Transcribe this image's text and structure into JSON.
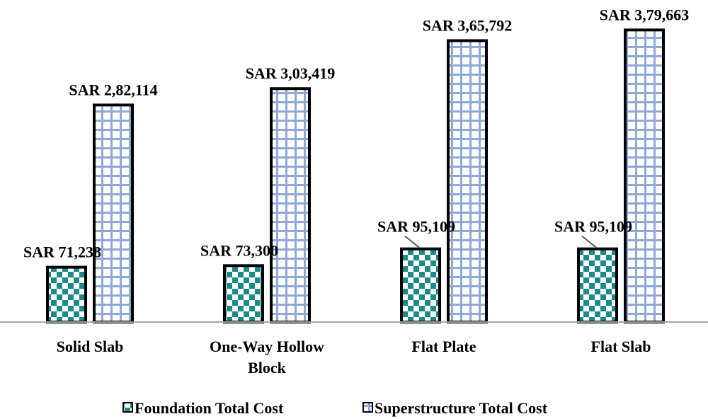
{
  "chart_data": {
    "type": "bar",
    "title": "",
    "xlabel": "",
    "ylabel": "",
    "categories": [
      [
        "Solid Slab"
      ],
      [
        "One-Way Hollow",
        "Block"
      ],
      [
        "Flat Plate"
      ],
      [
        "Flat Slab"
      ]
    ],
    "series": [
      {
        "name": "Foundation Total Cost",
        "values": [
          71238,
          73300,
          95109,
          95109
        ],
        "labels": [
          "SAR 71,238",
          "SAR 73,300",
          "SAR 95,109",
          "SAR 95,109"
        ],
        "pattern": "checkerboard",
        "color": "#1a8a8a"
      },
      {
        "name": "Superstructure Total Cost",
        "values": [
          282114,
          303419,
          365792,
          379663
        ],
        "labels": [
          "SAR 2,82,114",
          "SAR 3,03,419",
          "SAR 3,65,792",
          "SAR 3,79,663"
        ],
        "pattern": "grid",
        "color": "#8fa8d8"
      }
    ],
    "ylim": [
      0,
      380000
    ],
    "grid": false,
    "legend_position": "bottom"
  }
}
